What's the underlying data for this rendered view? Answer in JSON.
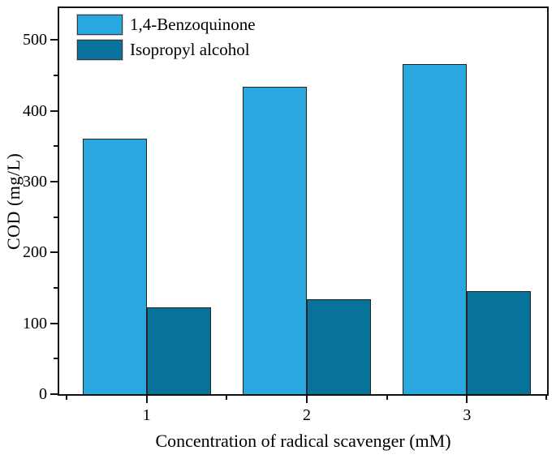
{
  "chart_data": {
    "type": "bar",
    "title": "",
    "xlabel": "Concentration of radical scavenger (mM)",
    "ylabel": "COD (mg/L)",
    "categories": [
      1,
      2,
      3
    ],
    "series": [
      {
        "name": "1,4-Benzoquinone",
        "color": "#29a8e0",
        "values": [
          361,
          434,
          466
        ]
      },
      {
        "name": "Isopropyl alcohol",
        "color": "#07739b",
        "values": [
          122,
          134,
          145
        ]
      }
    ],
    "bar_width_units": 0.4,
    "xlim": [
      0.455,
      3.5
    ],
    "ylim": [
      0,
      545
    ],
    "y_major_ticks": [
      0,
      100,
      200,
      300,
      400,
      500
    ],
    "y_minor_ticks": [
      50,
      150,
      250,
      350,
      450
    ],
    "x_major_ticks": [
      1,
      2,
      3
    ],
    "x_minor_ticks": [
      0.5,
      1.5,
      2.5,
      3.5
    ],
    "grid": false,
    "legend_position": "top-left",
    "axis_color": "#111111",
    "bar_edge_color": "#222222"
  }
}
